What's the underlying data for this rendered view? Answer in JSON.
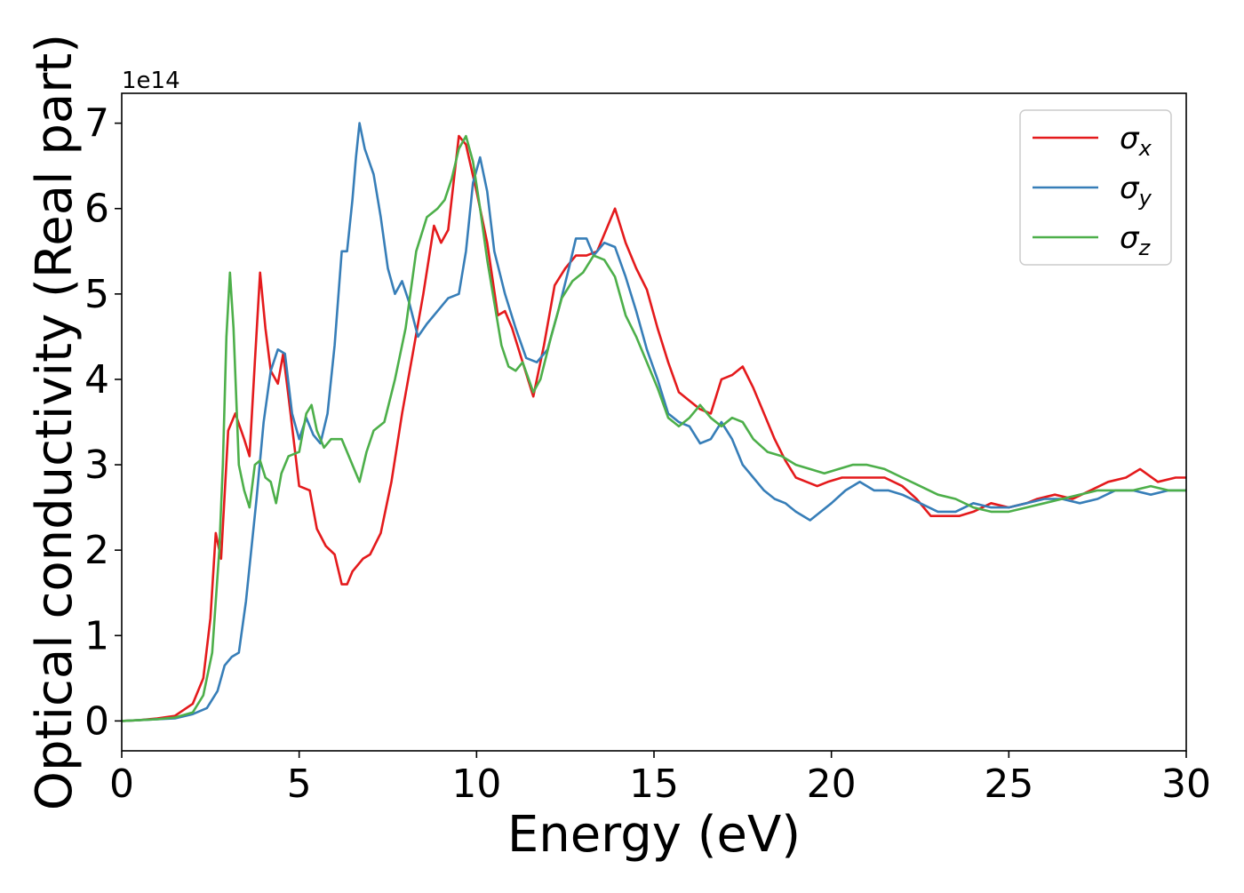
{
  "chart_data": {
    "type": "line",
    "xlabel": "Energy (eV)",
    "ylabel": "Optical conductivity (Real part)",
    "y_offset_label": "1e14",
    "xlim": [
      0,
      30
    ],
    "ylim": [
      -0.35,
      7.35
    ],
    "x_ticks": [
      0,
      5,
      10,
      15,
      20,
      25,
      30
    ],
    "x_tick_labels": [
      "0",
      "5",
      "10",
      "15",
      "20",
      "25",
      "30"
    ],
    "y_ticks": [
      0,
      1,
      2,
      3,
      4,
      5,
      6,
      7
    ],
    "y_tick_labels": [
      "0",
      "1",
      "2",
      "3",
      "4",
      "5",
      "6",
      "7"
    ],
    "grid": false,
    "legend_position": "top-right",
    "series": [
      {
        "name": "σx",
        "sub": "x",
        "color": "#e41a1c",
        "points": [
          [
            0,
            0
          ],
          [
            0.5,
            0.01
          ],
          [
            1,
            0.03
          ],
          [
            1.5,
            0.06
          ],
          [
            2,
            0.2
          ],
          [
            2.3,
            0.5
          ],
          [
            2.5,
            1.2
          ],
          [
            2.65,
            2.2
          ],
          [
            2.8,
            1.9
          ],
          [
            3,
            3.4
          ],
          [
            3.2,
            3.6
          ],
          [
            3.45,
            3.3
          ],
          [
            3.6,
            3.1
          ],
          [
            3.75,
            4.2
          ],
          [
            3.9,
            5.25
          ],
          [
            4.05,
            4.6
          ],
          [
            4.2,
            4.1
          ],
          [
            4.4,
            3.95
          ],
          [
            4.55,
            4.3
          ],
          [
            4.7,
            3.8
          ],
          [
            5,
            2.75
          ],
          [
            5.3,
            2.7
          ],
          [
            5.5,
            2.25
          ],
          [
            5.75,
            2.05
          ],
          [
            6,
            1.95
          ],
          [
            6.2,
            1.6
          ],
          [
            6.35,
            1.6
          ],
          [
            6.5,
            1.75
          ],
          [
            6.8,
            1.9
          ],
          [
            7,
            1.95
          ],
          [
            7.3,
            2.2
          ],
          [
            7.6,
            2.8
          ],
          [
            7.9,
            3.6
          ],
          [
            8.2,
            4.3
          ],
          [
            8.5,
            5.0
          ],
          [
            8.8,
            5.8
          ],
          [
            9.0,
            5.6
          ],
          [
            9.2,
            5.75
          ],
          [
            9.5,
            6.85
          ],
          [
            9.7,
            6.75
          ],
          [
            10,
            6.2
          ],
          [
            10.3,
            5.6
          ],
          [
            10.6,
            4.75
          ],
          [
            10.8,
            4.8
          ],
          [
            11,
            4.6
          ],
          [
            11.3,
            4.2
          ],
          [
            11.6,
            3.8
          ],
          [
            11.9,
            4.4
          ],
          [
            12.2,
            5.1
          ],
          [
            12.5,
            5.3
          ],
          [
            12.8,
            5.45
          ],
          [
            13.1,
            5.45
          ],
          [
            13.4,
            5.5
          ],
          [
            13.7,
            5.8
          ],
          [
            13.9,
            6.0
          ],
          [
            14.2,
            5.6
          ],
          [
            14.5,
            5.3
          ],
          [
            14.8,
            5.05
          ],
          [
            15.1,
            4.6
          ],
          [
            15.4,
            4.2
          ],
          [
            15.7,
            3.85
          ],
          [
            16,
            3.75
          ],
          [
            16.3,
            3.65
          ],
          [
            16.6,
            3.6
          ],
          [
            16.9,
            4.0
          ],
          [
            17.2,
            4.05
          ],
          [
            17.5,
            4.15
          ],
          [
            17.8,
            3.9
          ],
          [
            18.1,
            3.6
          ],
          [
            18.4,
            3.3
          ],
          [
            18.7,
            3.05
          ],
          [
            19,
            2.85
          ],
          [
            19.3,
            2.8
          ],
          [
            19.6,
            2.75
          ],
          [
            19.9,
            2.8
          ],
          [
            20.3,
            2.85
          ],
          [
            20.6,
            2.85
          ],
          [
            21,
            2.85
          ],
          [
            21.5,
            2.85
          ],
          [
            22,
            2.75
          ],
          [
            22.4,
            2.6
          ],
          [
            22.8,
            2.4
          ],
          [
            23.2,
            2.4
          ],
          [
            23.6,
            2.4
          ],
          [
            24,
            2.45
          ],
          [
            24.5,
            2.55
          ],
          [
            25,
            2.5
          ],
          [
            25.5,
            2.55
          ],
          [
            25.8,
            2.6
          ],
          [
            26.3,
            2.65
          ],
          [
            26.8,
            2.6
          ],
          [
            27.3,
            2.7
          ],
          [
            27.8,
            2.8
          ],
          [
            28.3,
            2.85
          ],
          [
            28.7,
            2.95
          ],
          [
            29.2,
            2.8
          ],
          [
            29.7,
            2.85
          ],
          [
            30,
            2.85
          ]
        ]
      },
      {
        "name": "σy",
        "sub": "y",
        "color": "#377eb8",
        "points": [
          [
            0,
            0
          ],
          [
            0.5,
            0.01
          ],
          [
            1,
            0.02
          ],
          [
            1.5,
            0.03
          ],
          [
            2,
            0.08
          ],
          [
            2.4,
            0.15
          ],
          [
            2.7,
            0.35
          ],
          [
            2.9,
            0.65
          ],
          [
            3.1,
            0.75
          ],
          [
            3.3,
            0.8
          ],
          [
            3.5,
            1.4
          ],
          [
            3.8,
            2.6
          ],
          [
            4.0,
            3.5
          ],
          [
            4.2,
            4.1
          ],
          [
            4.4,
            4.35
          ],
          [
            4.6,
            4.3
          ],
          [
            4.8,
            3.6
          ],
          [
            5,
            3.3
          ],
          [
            5.2,
            3.55
          ],
          [
            5.4,
            3.35
          ],
          [
            5.6,
            3.25
          ],
          [
            5.8,
            3.6
          ],
          [
            6,
            4.4
          ],
          [
            6.2,
            5.5
          ],
          [
            6.35,
            5.5
          ],
          [
            6.5,
            6.1
          ],
          [
            6.6,
            6.6
          ],
          [
            6.7,
            7.0
          ],
          [
            6.85,
            6.7
          ],
          [
            7.1,
            6.4
          ],
          [
            7.3,
            5.9
          ],
          [
            7.5,
            5.3
          ],
          [
            7.7,
            5.0
          ],
          [
            7.9,
            5.15
          ],
          [
            8.1,
            4.9
          ],
          [
            8.35,
            4.5
          ],
          [
            8.6,
            4.65
          ],
          [
            8.9,
            4.8
          ],
          [
            9.2,
            4.95
          ],
          [
            9.5,
            5.0
          ],
          [
            9.7,
            5.5
          ],
          [
            9.9,
            6.3
          ],
          [
            10.1,
            6.6
          ],
          [
            10.3,
            6.2
          ],
          [
            10.5,
            5.5
          ],
          [
            10.8,
            5.0
          ],
          [
            11.1,
            4.6
          ],
          [
            11.4,
            4.25
          ],
          [
            11.7,
            4.2
          ],
          [
            12,
            4.35
          ],
          [
            12.3,
            4.8
          ],
          [
            12.6,
            5.3
          ],
          [
            12.8,
            5.65
          ],
          [
            13.1,
            5.65
          ],
          [
            13.3,
            5.45
          ],
          [
            13.6,
            5.6
          ],
          [
            13.9,
            5.55
          ],
          [
            14.2,
            5.2
          ],
          [
            14.5,
            4.8
          ],
          [
            14.8,
            4.35
          ],
          [
            15.1,
            4.0
          ],
          [
            15.4,
            3.6
          ],
          [
            15.7,
            3.5
          ],
          [
            16,
            3.45
          ],
          [
            16.3,
            3.25
          ],
          [
            16.6,
            3.3
          ],
          [
            16.9,
            3.5
          ],
          [
            17.2,
            3.3
          ],
          [
            17.5,
            3.0
          ],
          [
            17.8,
            2.85
          ],
          [
            18.1,
            2.7
          ],
          [
            18.4,
            2.6
          ],
          [
            18.7,
            2.55
          ],
          [
            19.0,
            2.45
          ],
          [
            19.4,
            2.35
          ],
          [
            19.7,
            2.45
          ],
          [
            20,
            2.55
          ],
          [
            20.4,
            2.7
          ],
          [
            20.8,
            2.8
          ],
          [
            21.2,
            2.7
          ],
          [
            21.6,
            2.7
          ],
          [
            22,
            2.65
          ],
          [
            22.5,
            2.55
          ],
          [
            23,
            2.45
          ],
          [
            23.5,
            2.45
          ],
          [
            24,
            2.55
          ],
          [
            24.5,
            2.5
          ],
          [
            25,
            2.5
          ],
          [
            25.5,
            2.55
          ],
          [
            26,
            2.6
          ],
          [
            26.5,
            2.6
          ],
          [
            27,
            2.55
          ],
          [
            27.5,
            2.6
          ],
          [
            28,
            2.7
          ],
          [
            28.5,
            2.7
          ],
          [
            29,
            2.65
          ],
          [
            29.5,
            2.7
          ],
          [
            30,
            2.7
          ]
        ]
      },
      {
        "name": "σz",
        "sub": "z",
        "color": "#4daf4a",
        "points": [
          [
            0,
            0
          ],
          [
            0.5,
            0.01
          ],
          [
            1,
            0.02
          ],
          [
            1.5,
            0.04
          ],
          [
            2,
            0.1
          ],
          [
            2.3,
            0.3
          ],
          [
            2.55,
            0.8
          ],
          [
            2.75,
            2.0
          ],
          [
            2.85,
            3.0
          ],
          [
            2.95,
            4.5
          ],
          [
            3.05,
            5.25
          ],
          [
            3.15,
            4.6
          ],
          [
            3.3,
            3.0
          ],
          [
            3.45,
            2.7
          ],
          [
            3.6,
            2.5
          ],
          [
            3.75,
            3.0
          ],
          [
            3.9,
            3.05
          ],
          [
            4.05,
            2.85
          ],
          [
            4.2,
            2.8
          ],
          [
            4.35,
            2.55
          ],
          [
            4.5,
            2.9
          ],
          [
            4.7,
            3.1
          ],
          [
            5,
            3.15
          ],
          [
            5.2,
            3.6
          ],
          [
            5.35,
            3.7
          ],
          [
            5.5,
            3.4
          ],
          [
            5.7,
            3.2
          ],
          [
            5.9,
            3.3
          ],
          [
            6.2,
            3.3
          ],
          [
            6.5,
            3.0
          ],
          [
            6.7,
            2.8
          ],
          [
            6.9,
            3.15
          ],
          [
            7.1,
            3.4
          ],
          [
            7.4,
            3.5
          ],
          [
            7.7,
            4.0
          ],
          [
            8.0,
            4.6
          ],
          [
            8.3,
            5.5
          ],
          [
            8.6,
            5.9
          ],
          [
            8.9,
            6.0
          ],
          [
            9.1,
            6.1
          ],
          [
            9.3,
            6.35
          ],
          [
            9.5,
            6.7
          ],
          [
            9.7,
            6.85
          ],
          [
            9.9,
            6.55
          ],
          [
            10.1,
            6.0
          ],
          [
            10.3,
            5.4
          ],
          [
            10.5,
            4.9
          ],
          [
            10.7,
            4.4
          ],
          [
            10.9,
            4.15
          ],
          [
            11.1,
            4.1
          ],
          [
            11.3,
            4.2
          ],
          [
            11.6,
            3.85
          ],
          [
            11.8,
            4.0
          ],
          [
            12.1,
            4.5
          ],
          [
            12.4,
            4.95
          ],
          [
            12.7,
            5.15
          ],
          [
            13.0,
            5.25
          ],
          [
            13.3,
            5.45
          ],
          [
            13.6,
            5.4
          ],
          [
            13.9,
            5.2
          ],
          [
            14.2,
            4.75
          ],
          [
            14.5,
            4.5
          ],
          [
            14.8,
            4.2
          ],
          [
            15.1,
            3.9
          ],
          [
            15.4,
            3.55
          ],
          [
            15.7,
            3.45
          ],
          [
            16.0,
            3.55
          ],
          [
            16.3,
            3.7
          ],
          [
            16.6,
            3.55
          ],
          [
            16.9,
            3.45
          ],
          [
            17.2,
            3.55
          ],
          [
            17.5,
            3.5
          ],
          [
            17.8,
            3.3
          ],
          [
            18.2,
            3.15
          ],
          [
            18.6,
            3.1
          ],
          [
            19.0,
            3.0
          ],
          [
            19.4,
            2.95
          ],
          [
            19.8,
            2.9
          ],
          [
            20.2,
            2.95
          ],
          [
            20.6,
            3.0
          ],
          [
            21.0,
            3.0
          ],
          [
            21.5,
            2.95
          ],
          [
            22.0,
            2.85
          ],
          [
            22.5,
            2.75
          ],
          [
            23.0,
            2.65
          ],
          [
            23.5,
            2.6
          ],
          [
            24.0,
            2.5
          ],
          [
            24.5,
            2.45
          ],
          [
            25.0,
            2.45
          ],
          [
            25.5,
            2.5
          ],
          [
            26.0,
            2.55
          ],
          [
            26.5,
            2.6
          ],
          [
            27.0,
            2.65
          ],
          [
            27.5,
            2.7
          ],
          [
            28.0,
            2.7
          ],
          [
            28.5,
            2.7
          ],
          [
            29.0,
            2.75
          ],
          [
            29.5,
            2.7
          ],
          [
            30,
            2.7
          ]
        ]
      }
    ]
  }
}
